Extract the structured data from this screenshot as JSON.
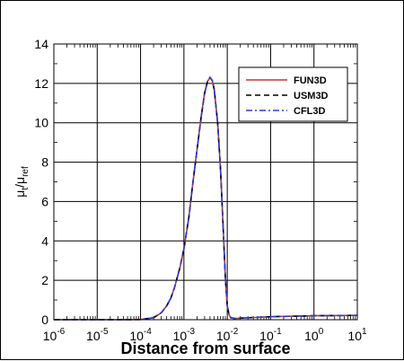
{
  "chart_data": {
    "type": "line",
    "xscale": "log",
    "xlim": [
      1e-06,
      10
    ],
    "ylim": [
      0,
      14
    ],
    "grid": true,
    "xlabel": "Distance from surface",
    "ylabel": {
      "base1": "μ",
      "sub1": "t",
      "sep": "/",
      "base2": "μ",
      "sub2": "ref"
    },
    "x_ticks": [
      {
        "value": 1e-06,
        "base": "10",
        "exp": "-6"
      },
      {
        "value": 1e-05,
        "base": "10",
        "exp": "-5"
      },
      {
        "value": 0.0001,
        "base": "10",
        "exp": "-4"
      },
      {
        "value": 0.001,
        "base": "10",
        "exp": "-3"
      },
      {
        "value": 0.01,
        "base": "10",
        "exp": "-2"
      },
      {
        "value": 0.1,
        "base": "10",
        "exp": "-1"
      },
      {
        "value": 1,
        "base": "10",
        "exp": "0"
      },
      {
        "value": 10,
        "base": "10",
        "exp": "1"
      }
    ],
    "y_ticks": [
      {
        "value": 0,
        "label": "0"
      },
      {
        "value": 2,
        "label": "2"
      },
      {
        "value": 4,
        "label": "4"
      },
      {
        "value": 6,
        "label": "6"
      },
      {
        "value": 8,
        "label": "8"
      },
      {
        "value": 10,
        "label": "10"
      },
      {
        "value": 12,
        "label": "12"
      },
      {
        "value": 14,
        "label": "14"
      }
    ],
    "legend_position": "top-right",
    "x": [
      1e-06,
      1e-05,
      5e-05,
      0.0001,
      0.0002,
      0.0003,
      0.0004,
      0.0005,
      0.0006,
      0.0008,
      0.001,
      0.0013,
      0.0016,
      0.002,
      0.0025,
      0.003,
      0.0035,
      0.004,
      0.0045,
      0.005,
      0.006,
      0.007,
      0.008,
      0.009,
      0.01,
      0.011,
      0.012,
      0.015,
      0.02,
      0.05,
      0.1,
      1,
      10
    ],
    "series": [
      {
        "name": "FUN3D",
        "color": "#c0392b",
        "dash": "solid",
        "values": [
          0,
          0,
          0,
          0.01,
          0.1,
          0.35,
          0.7,
          1.1,
          1.6,
          2.6,
          3.6,
          5.2,
          6.9,
          8.6,
          10.3,
          11.5,
          12.1,
          12.3,
          12.15,
          11.7,
          10.0,
          7.6,
          4.8,
          2.2,
          0.7,
          0.25,
          0.1,
          0.06,
          0.08,
          0.12,
          0.15,
          0.2,
          0.22
        ]
      },
      {
        "name": "USM3D",
        "color": "#000000",
        "dash": "dashed",
        "values": [
          0,
          0,
          0,
          0.01,
          0.1,
          0.35,
          0.7,
          1.1,
          1.6,
          2.6,
          3.6,
          5.2,
          6.9,
          8.6,
          10.3,
          11.5,
          12.1,
          12.3,
          12.15,
          11.7,
          10.0,
          7.6,
          4.8,
          2.2,
          0.7,
          0.25,
          0.1,
          0.06,
          0.08,
          0.12,
          0.15,
          0.2,
          0.22
        ]
      },
      {
        "name": "CFL3D",
        "color": "#2b3bd6",
        "dash": "dashdot",
        "values": [
          0,
          0,
          0,
          0.01,
          0.1,
          0.35,
          0.7,
          1.1,
          1.6,
          2.6,
          3.6,
          5.2,
          6.9,
          8.6,
          10.3,
          11.5,
          12.1,
          12.3,
          12.15,
          11.7,
          10.0,
          7.6,
          4.8,
          2.2,
          0.7,
          0.25,
          0.1,
          0.06,
          0.08,
          0.12,
          0.15,
          0.2,
          0.22
        ]
      }
    ]
  }
}
